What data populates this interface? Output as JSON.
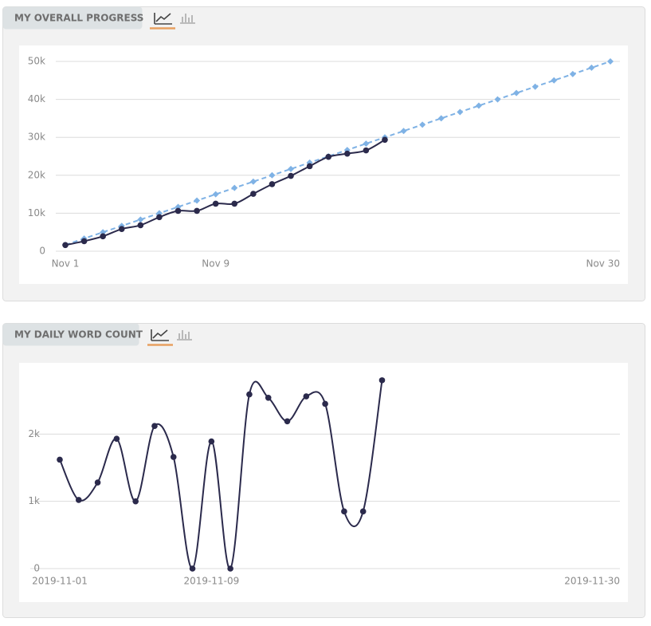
{
  "chart_data": [
    {
      "type": "line",
      "title": "MY OVERALL PROGRESS",
      "categories": [
        "Nov 1",
        null,
        null,
        null,
        null,
        null,
        null,
        null,
        "Nov 9",
        null,
        null,
        null,
        null,
        null,
        null,
        null,
        null,
        null,
        null,
        null,
        null,
        null,
        null,
        null,
        null,
        null,
        null,
        null,
        null,
        "Nov 30"
      ],
      "series": [
        {
          "color": "#7fb2e5",
          "dashed": true,
          "marker": "diamond",
          "smooth": false,
          "values": [
            1667,
            3333,
            5000,
            6667,
            8333,
            10000,
            11667,
            13333,
            15000,
            16667,
            18333,
            20000,
            21667,
            23333,
            25000,
            26667,
            28333,
            30000,
            31667,
            33333,
            35000,
            36667,
            38333,
            40000,
            41667,
            43333,
            45000,
            46667,
            48333,
            50000
          ]
        },
        {
          "color": "#2b2a4c",
          "dashed": false,
          "marker": "circle",
          "smooth": true,
          "values": [
            1620,
            2640,
            3920,
            5850,
            6850,
            8970,
            10630,
            10630,
            12520,
            12520,
            15110,
            17650,
            19840,
            22400,
            24850,
            25700,
            26550,
            29350,
            null,
            null,
            null,
            null,
            null,
            null,
            null,
            null,
            null,
            null,
            null,
            null
          ]
        }
      ],
      "ylim": [
        0,
        50000
      ],
      "yticks": [
        0,
        {
          "value": 10000,
          "label": "10k"
        },
        {
          "value": 20000,
          "label": "20k"
        },
        {
          "value": 30000,
          "label": "30k"
        },
        {
          "value": 40000,
          "label": "40k"
        },
        {
          "value": 50000,
          "label": "50k"
        }
      ],
      "grid": true
    },
    {
      "type": "line",
      "title": "MY DAILY WORD COUNT",
      "categories": [
        "2019-11-01",
        null,
        null,
        null,
        null,
        null,
        null,
        null,
        "2019-11-09",
        null,
        null,
        null,
        null,
        null,
        null,
        null,
        null,
        null,
        null,
        null,
        null,
        null,
        null,
        null,
        null,
        null,
        null,
        null,
        null,
        "2019-11-30"
      ],
      "series": [
        {
          "color": "#2b2a4c",
          "dashed": false,
          "marker": "circle",
          "smooth": true,
          "values": [
            1620,
            1020,
            1280,
            1930,
            1000,
            2120,
            1660,
            0,
            1890,
            0,
            2590,
            2540,
            2190,
            2560,
            2450,
            850,
            850,
            2800,
            null,
            null,
            null,
            null,
            null,
            null,
            null,
            null,
            null,
            null,
            null,
            null
          ]
        }
      ],
      "ylim": [
        0,
        3000
      ],
      "yticks": [
        0,
        {
          "value": 1000,
          "label": "1k"
        },
        {
          "value": 2000,
          "label": "2k"
        }
      ],
      "grid": true
    }
  ]
}
